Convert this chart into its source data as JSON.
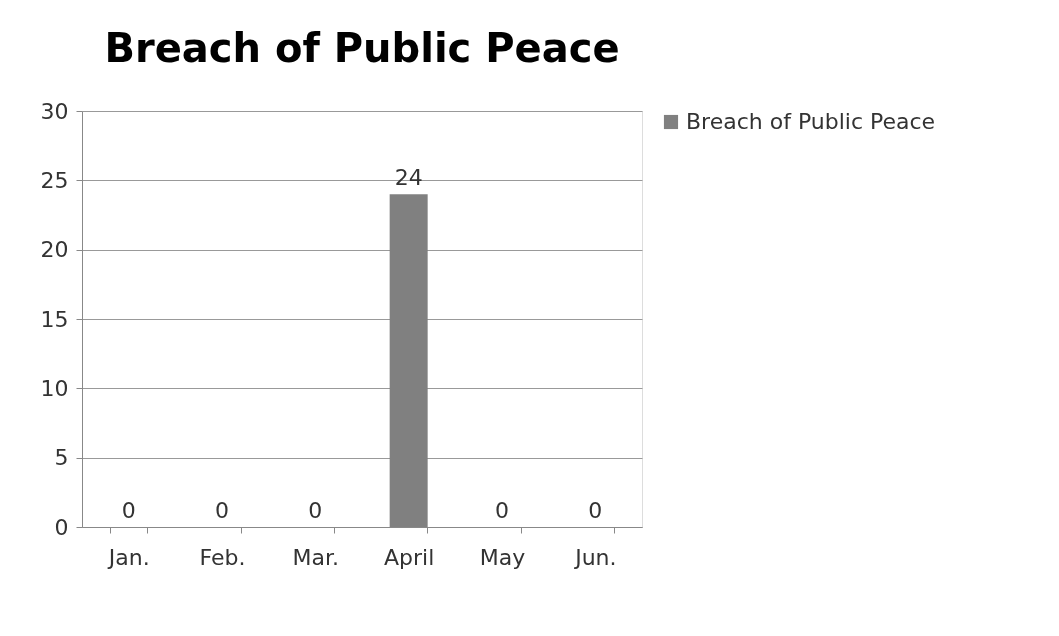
{
  "chart_data": {
    "type": "bar",
    "title": "Breach of Public Peace",
    "categories": [
      "Jan.",
      "Feb.",
      "Mar.",
      "April",
      "May",
      "Jun."
    ],
    "series": [
      {
        "name": "Breach of Public Peace",
        "color": "#808080",
        "values": [
          0,
          0,
          0,
          24,
          0,
          0
        ]
      }
    ],
    "ylim": [
      0,
      30
    ],
    "yticks": [
      0,
      5,
      10,
      15,
      20,
      25,
      30
    ],
    "grid": "y",
    "legend": "right",
    "data_labels": true
  }
}
